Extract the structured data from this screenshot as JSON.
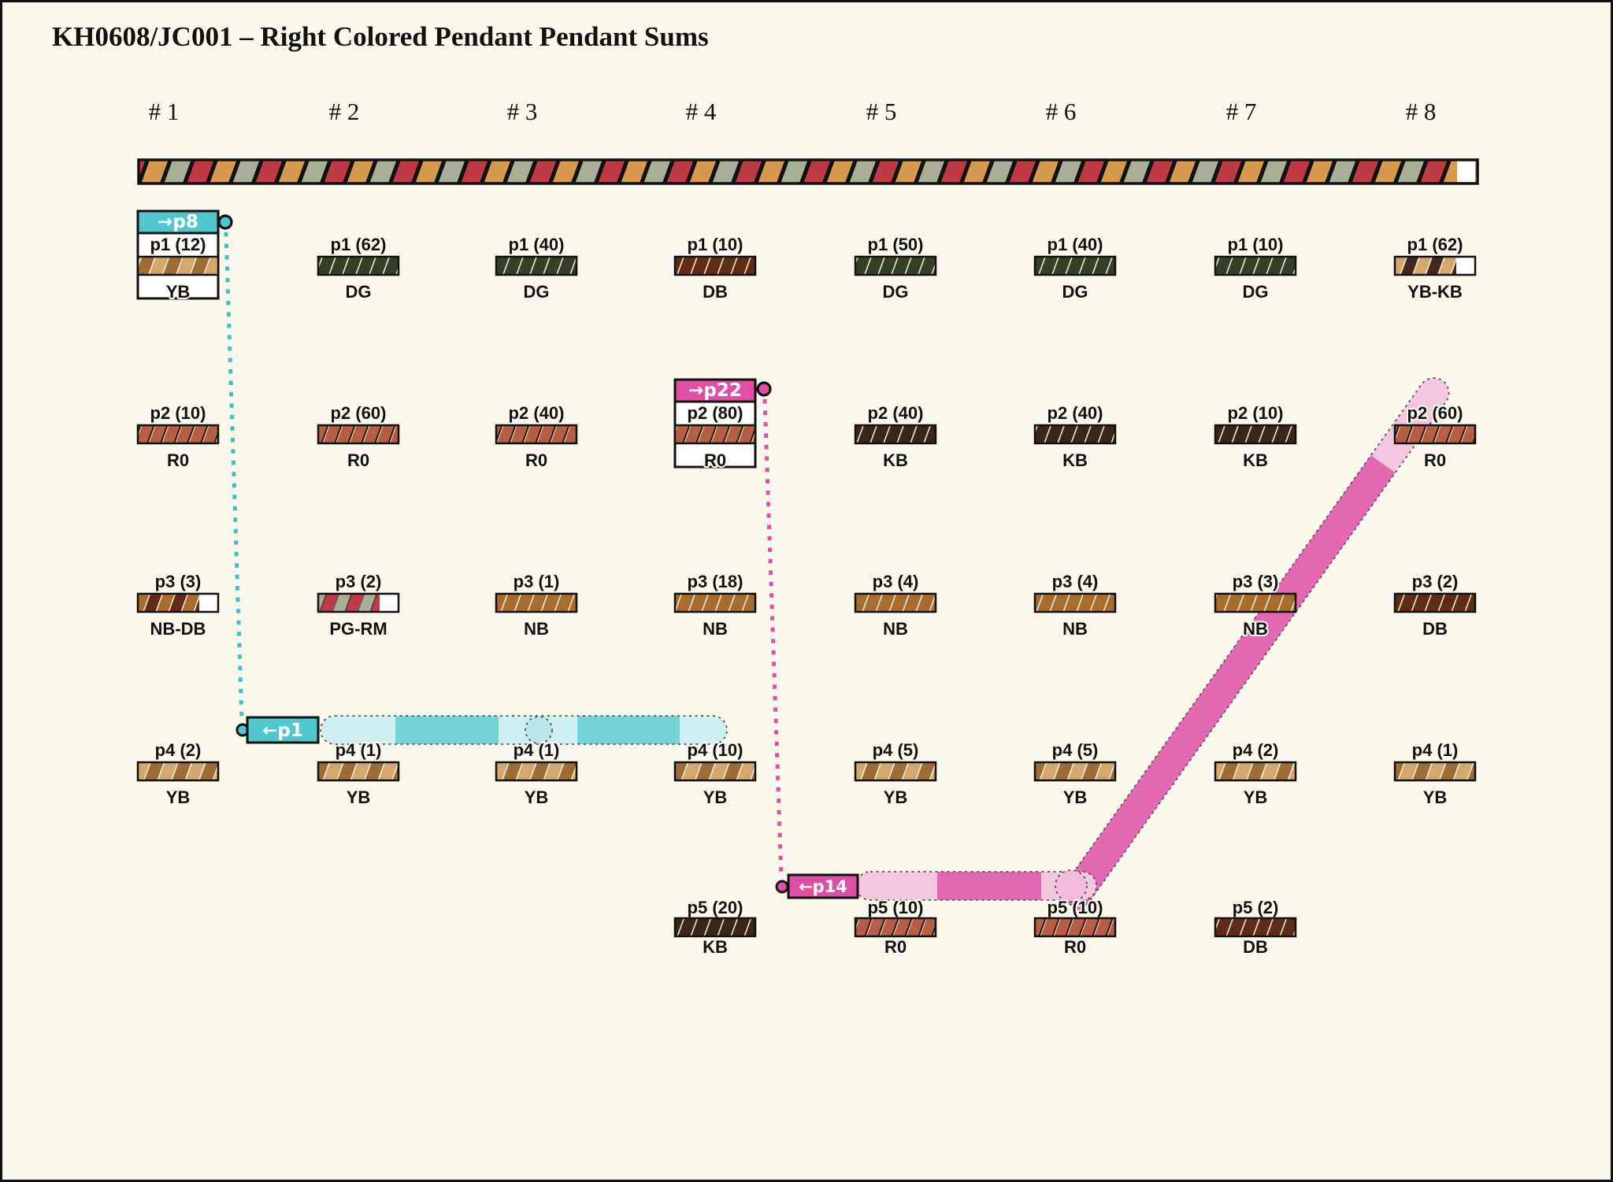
{
  "title": "KH0608/JC001 – Right Colored Pendant Pendant Sums",
  "columns": [
    "# 1",
    "# 2",
    "# 3",
    "# 4",
    "# 5",
    "# 6",
    "# 7",
    "# 8"
  ],
  "palette": {
    "background": "#faf7ec",
    "ink": "#111111",
    "cyan": "#4fc7cc",
    "cyan_mid": "#76d3d6",
    "cyan_light": "#cdeff0",
    "cyan_dots": "#3fc0c7",
    "pink": "#df4fa4",
    "pink_mid": "#e368b2",
    "pink_light": "#f5c6e0",
    "bar_tan": "#d6994e",
    "bar_sage": "#a9ae97",
    "bar_red": "#bf3a45"
  },
  "grid": {
    "rows": [
      {
        "id": "p1",
        "cells": [
          {
            "col": 1,
            "label": "p1 (12)",
            "code": "YB",
            "selected": {
              "tag": "→p8",
              "scheme": "cyan"
            }
          },
          {
            "col": 2,
            "label": "p1 (62)",
            "code": "DG"
          },
          {
            "col": 3,
            "label": "p1 (40)",
            "code": "DG"
          },
          {
            "col": 4,
            "label": "p1 (10)",
            "code": "DB"
          },
          {
            "col": 5,
            "label": "p1 (50)",
            "code": "DG"
          },
          {
            "col": 6,
            "label": "p1 (40)",
            "code": "DG"
          },
          {
            "col": 7,
            "label": "p1 (10)",
            "code": "DG"
          },
          {
            "col": 8,
            "label": "p1 (62)",
            "code": "YB-KB"
          }
        ]
      },
      {
        "id": "p2",
        "cells": [
          {
            "col": 1,
            "label": "p2 (10)",
            "code": "R0"
          },
          {
            "col": 2,
            "label": "p2 (60)",
            "code": "R0"
          },
          {
            "col": 3,
            "label": "p2 (40)",
            "code": "R0"
          },
          {
            "col": 4,
            "label": "p2 (80)",
            "code": "R0",
            "selected": {
              "tag": "→p22",
              "scheme": "pink"
            }
          },
          {
            "col": 5,
            "label": "p2 (40)",
            "code": "KB"
          },
          {
            "col": 6,
            "label": "p2 (40)",
            "code": "KB"
          },
          {
            "col": 7,
            "label": "p2 (10)",
            "code": "KB"
          },
          {
            "col": 8,
            "label": "p2 (60)",
            "code": "R0"
          }
        ]
      },
      {
        "id": "p3",
        "cells": [
          {
            "col": 1,
            "label": "p3 (3)",
            "code": "NB-DB"
          },
          {
            "col": 2,
            "label": "p3 (2)",
            "code": "PG-RM"
          },
          {
            "col": 3,
            "label": "p3 (1)",
            "code": "NB"
          },
          {
            "col": 4,
            "label": "p3 (18)",
            "code": "NB"
          },
          {
            "col": 5,
            "label": "p3 (4)",
            "code": "NB"
          },
          {
            "col": 6,
            "label": "p3 (4)",
            "code": "NB"
          },
          {
            "col": 7,
            "label": "p3 (3)",
            "code": "NB"
          },
          {
            "col": 8,
            "label": "p3 (2)",
            "code": "DB"
          }
        ]
      },
      {
        "id": "p4",
        "cells": [
          {
            "col": 1,
            "label": "p4 (2)",
            "code": "YB"
          },
          {
            "col": 2,
            "label": "p4 (1)",
            "code": "YB"
          },
          {
            "col": 3,
            "label": "p4 (1)",
            "code": "YB"
          },
          {
            "col": 4,
            "label": "p4 (10)",
            "code": "YB"
          },
          {
            "col": 5,
            "label": "p4 (5)",
            "code": "YB"
          },
          {
            "col": 6,
            "label": "p4 (5)",
            "code": "YB"
          },
          {
            "col": 7,
            "label": "p4 (2)",
            "code": "YB"
          },
          {
            "col": 8,
            "label": "p4 (1)",
            "code": "YB"
          }
        ]
      },
      {
        "id": "p5",
        "cells": [
          {
            "col": 4,
            "label": "p5 (20)",
            "code": "KB"
          },
          {
            "col": 5,
            "label": "p5 (10)",
            "code": "R0"
          },
          {
            "col": 6,
            "label": "p5 (10)",
            "code": "R0"
          },
          {
            "col": 7,
            "label": "p5 (2)",
            "code": "DB"
          }
        ]
      }
    ]
  },
  "routes": {
    "p1": {
      "chip": "←p1",
      "scheme": "cyan"
    },
    "p14": {
      "chip": "←p14",
      "scheme": "pink"
    }
  }
}
